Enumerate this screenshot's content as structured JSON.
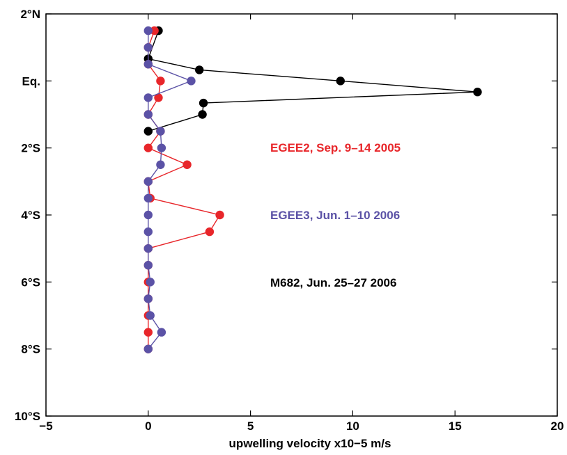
{
  "chart_data": {
    "type": "scatter",
    "xlabel": "upwelling velocity x10−5 m/s",
    "ylabel": "",
    "xlim": [
      -5,
      20
    ],
    "ylim": [
      -10,
      2
    ],
    "xticks": [
      -5,
      0,
      5,
      10,
      15,
      20
    ],
    "xtick_labels": [
      "−5",
      "0",
      "5",
      "10",
      "15",
      "20"
    ],
    "yticks": [
      2,
      0,
      -2,
      -4,
      -6,
      -8,
      -10
    ],
    "ytick_labels": [
      "2°N",
      "Eq.",
      "2°S",
      "4°S",
      "6°S",
      "8°S",
      "10°S"
    ],
    "grid": false,
    "series": [
      {
        "name": "M682, Jun. 25–27 2006",
        "color": "#000000",
        "points": [
          {
            "x": 0.5,
            "y": 1.5
          },
          {
            "x": 0.0,
            "y": 0.66
          },
          {
            "x": 2.5,
            "y": 0.33
          },
          {
            "x": 9.4,
            "y": 0.0
          },
          {
            "x": 16.1,
            "y": -0.33
          },
          {
            "x": 2.7,
            "y": -0.66
          },
          {
            "x": 2.65,
            "y": -1.0
          },
          {
            "x": 0.0,
            "y": -1.5
          }
        ]
      },
      {
        "name": "EGEE2, Sep. 9–14 2005",
        "color": "#e8262a",
        "points": [
          {
            "x": 0.3,
            "y": 1.5
          },
          {
            "x": 0.0,
            "y": 1.0
          },
          {
            "x": 0.0,
            "y": 0.5
          },
          {
            "x": 0.6,
            "y": 0.0
          },
          {
            "x": 0.5,
            "y": -0.5
          },
          {
            "x": 0.0,
            "y": -1.0
          },
          {
            "x": 0.6,
            "y": -1.5
          },
          {
            "x": 0.0,
            "y": -2.0
          },
          {
            "x": 1.9,
            "y": -2.5
          },
          {
            "x": 0.0,
            "y": -3.0
          },
          {
            "x": 0.1,
            "y": -3.5
          },
          {
            "x": 3.5,
            "y": -4.0
          },
          {
            "x": 3.0,
            "y": -4.5
          },
          {
            "x": 0.0,
            "y": -5.0
          },
          {
            "x": 0.0,
            "y": -5.5
          },
          {
            "x": 0.0,
            "y": -6.0
          },
          {
            "x": 0.0,
            "y": -6.5
          },
          {
            "x": 0.0,
            "y": -7.0
          },
          {
            "x": 0.0,
            "y": -7.5
          },
          {
            "x": 0.0,
            "y": -8.0
          }
        ]
      },
      {
        "name": "EGEE3, Jun. 1–10 2006",
        "color": "#5b52a6",
        "points": [
          {
            "x": 0.0,
            "y": 1.5
          },
          {
            "x": 0.0,
            "y": 1.0
          },
          {
            "x": 0.0,
            "y": 0.5
          },
          {
            "x": 2.1,
            "y": 0.0
          },
          {
            "x": 0.0,
            "y": -0.5
          },
          {
            "x": 0.0,
            "y": -1.0
          },
          {
            "x": 0.6,
            "y": -1.5
          },
          {
            "x": 0.65,
            "y": -2.0
          },
          {
            "x": 0.6,
            "y": -2.5
          },
          {
            "x": 0.0,
            "y": -3.0
          },
          {
            "x": 0.0,
            "y": -3.5
          },
          {
            "x": 0.0,
            "y": -4.0
          },
          {
            "x": 0.0,
            "y": -4.5
          },
          {
            "x": 0.0,
            "y": -5.0
          },
          {
            "x": 0.0,
            "y": -5.5
          },
          {
            "x": 0.1,
            "y": -6.0
          },
          {
            "x": 0.0,
            "y": -6.5
          },
          {
            "x": 0.1,
            "y": -7.0
          },
          {
            "x": 0.65,
            "y": -7.5
          },
          {
            "x": 0.0,
            "y": -8.0
          }
        ]
      }
    ],
    "legend": [
      {
        "text": "EGEE2, Sep. 9–14 2005",
        "color": "#e8262a"
      },
      {
        "text": "EGEE3, Jun. 1–10 2006",
        "color": "#5b52a6"
      },
      {
        "text": "M682, Jun. 25–27 2006",
        "color": "#000000"
      }
    ],
    "legend_placement": "right-middle"
  }
}
